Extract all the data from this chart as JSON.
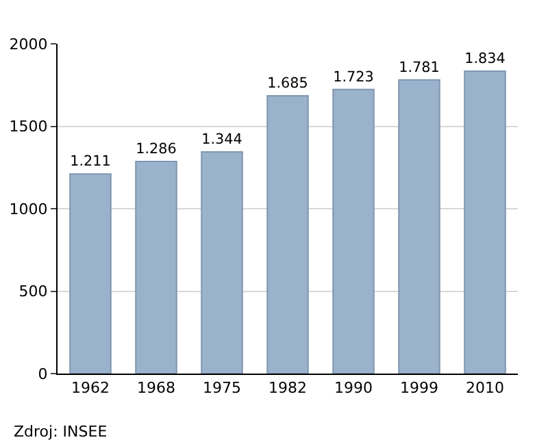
{
  "chart_data": {
    "type": "bar",
    "categories": [
      "1962",
      "1968",
      "1975",
      "1982",
      "1990",
      "1999",
      "2010"
    ],
    "values": [
      1211,
      1286,
      1344,
      1685,
      1723,
      1781,
      1834
    ],
    "value_labels": [
      "1.211",
      "1.286",
      "1.344",
      "1.685",
      "1.723",
      "1.781",
      "1.834"
    ],
    "color": "#9bb2cc",
    "ylim": [
      0,
      2000
    ],
    "yticks": [
      0,
      500,
      1000,
      1500,
      2000
    ],
    "grid": "y",
    "annotations": [
      "Zdroj: INSEE"
    ]
  }
}
